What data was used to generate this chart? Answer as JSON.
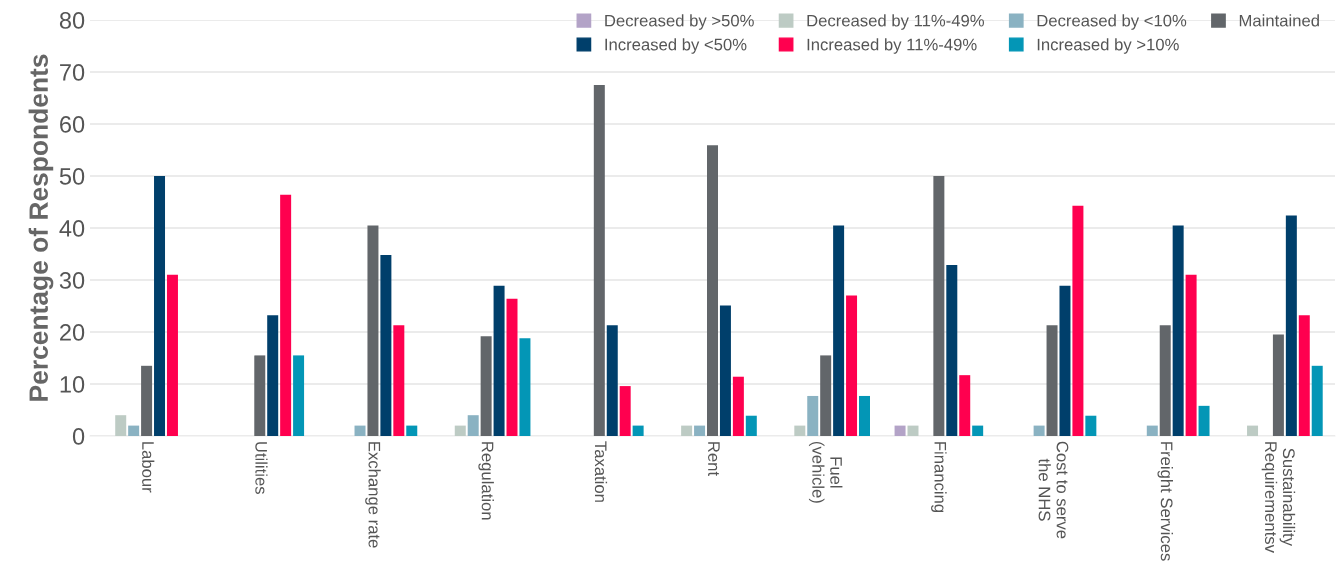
{
  "chart_data": {
    "type": "bar",
    "ylabel": "Percentage of Respondents",
    "categories": [
      "Labour",
      "Utilities",
      "Exchange rate",
      "Regulation",
      "Taxation",
      "Rent",
      "Fuel\n(vehicle)",
      "Financing",
      "Cost to serve\nthe NHS",
      "Freight Services",
      "Sustainability\nRequirementsv"
    ],
    "series": [
      {
        "name": "Decreased by >50%",
        "color": "#b3a3c7",
        "values": [
          null,
          null,
          null,
          null,
          null,
          null,
          null,
          2,
          null,
          null,
          null
        ]
      },
      {
        "name": "Decreased by 11%-49%",
        "color": "#bdcbc4",
        "values": [
          4,
          null,
          null,
          2,
          null,
          2,
          2,
          2,
          null,
          null,
          2
        ]
      },
      {
        "name": "Decreased by <10%",
        "color": "#8ab2c2",
        "values": [
          2,
          null,
          2,
          4,
          null,
          2,
          7.7,
          null,
          2,
          2,
          null
        ]
      },
      {
        "name": "Maintained",
        "color": "#62666a",
        "values": [
          13.5,
          15.5,
          40.5,
          19.2,
          67.5,
          55.9,
          15.5,
          50,
          21.3,
          21.3,
          19.5
        ]
      },
      {
        "name": "Increased by <50%",
        "color": "#003f6b",
        "values": [
          50,
          23.2,
          34.8,
          28.9,
          21.3,
          25.1,
          40.5,
          32.9,
          28.9,
          40.5,
          42.4
        ]
      },
      {
        "name": "Increased by 11%-49%",
        "color": "#ff004f",
        "values": [
          31,
          46.4,
          21.3,
          26.4,
          9.6,
          11.4,
          27,
          11.7,
          44.3,
          31,
          23.2
        ]
      },
      {
        "name": "Increased by >10%",
        "color": "#0396b6",
        "values": [
          null,
          15.5,
          2,
          18.8,
          2,
          3.9,
          7.7,
          2,
          3.9,
          5.8,
          13.5
        ]
      }
    ],
    "ylim": [
      0,
      80
    ],
    "yticks": [
      0,
      10,
      20,
      30,
      40,
      50,
      60,
      70,
      80
    ],
    "grid": "y",
    "legend": "top right"
  }
}
